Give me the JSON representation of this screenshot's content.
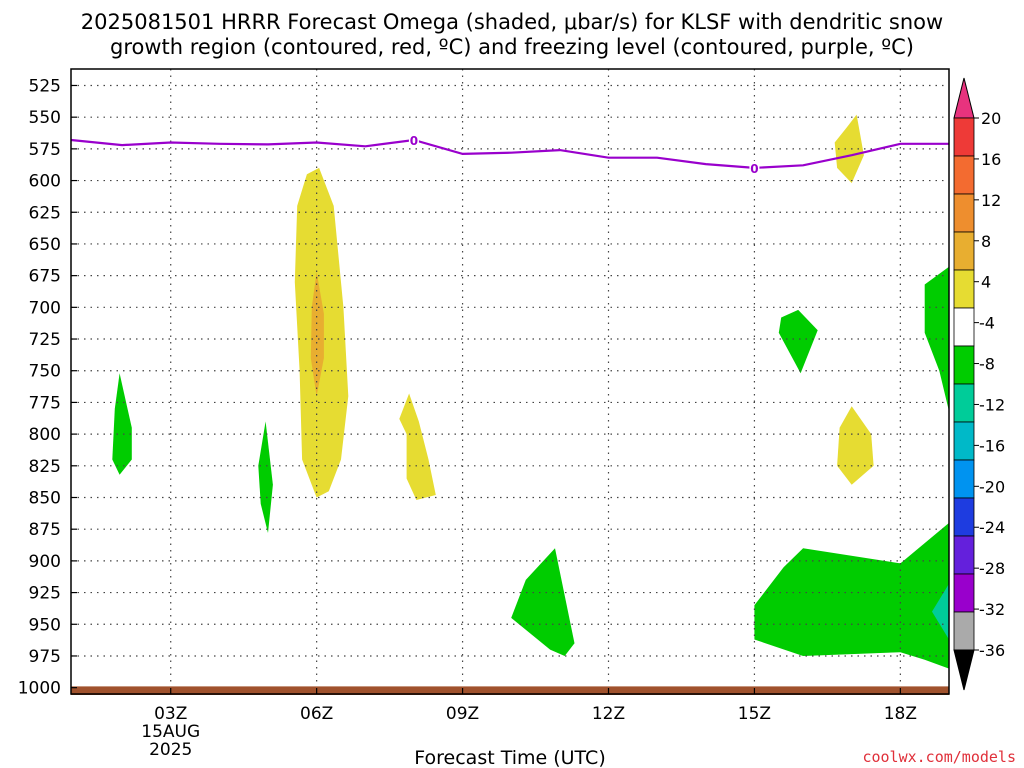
{
  "title_line1": "2025081501 HRRR Forecast Omega (shaded, μbar/s) for KLSF with dendritic snow",
  "title_line2": "growth region (contoured, red, ºC) and freezing level (contoured, purple, ºC)",
  "credit": "coolwx.com/models",
  "chart_data": {
    "type": "contour",
    "xlabel": "Forecast Time (UTC)",
    "ylabel": "",
    "x_range_hours": [
      0.95,
      19.0
    ],
    "y_range_hPa": [
      1005,
      512
    ],
    "y_ticks": [
      525,
      550,
      575,
      600,
      625,
      650,
      675,
      700,
      725,
      750,
      775,
      800,
      825,
      850,
      875,
      900,
      925,
      950,
      975,
      1000
    ],
    "y_tick_labels": [
      "525",
      "550",
      "575",
      "600",
      "625",
      "650",
      "675",
      "700",
      "725",
      "750",
      "775",
      "800",
      "825",
      "850",
      "875",
      "900",
      "925",
      "950",
      "975",
      "1000"
    ],
    "x_ticks": [
      {
        "hour": 3,
        "label": "03Z",
        "sub1": "15AUG",
        "sub2": "2025"
      },
      {
        "hour": 6,
        "label": "06Z",
        "sub1": "",
        "sub2": ""
      },
      {
        "hour": 9,
        "label": "09Z",
        "sub1": "",
        "sub2": ""
      },
      {
        "hour": 12,
        "label": "12Z",
        "sub1": "",
        "sub2": ""
      },
      {
        "hour": 15,
        "label": "15Z",
        "sub1": "",
        "sub2": ""
      },
      {
        "hour": 18,
        "label": "18Z",
        "sub1": "",
        "sub2": ""
      }
    ],
    "grid": true,
    "freezing_level": {
      "color": "#9900cc",
      "points": [
        [
          0.95,
          568
        ],
        [
          2,
          572
        ],
        [
          3,
          570
        ],
        [
          4,
          571
        ],
        [
          5,
          571.5
        ],
        [
          6,
          570
        ],
        [
          7,
          573
        ],
        [
          8,
          568
        ],
        [
          9,
          579
        ],
        [
          10,
          578
        ],
        [
          11,
          576
        ],
        [
          12,
          582
        ],
        [
          13,
          582
        ],
        [
          14,
          587
        ],
        [
          15,
          590
        ],
        [
          16,
          588
        ],
        [
          17,
          580
        ],
        [
          18,
          571
        ],
        [
          19,
          571
        ]
      ],
      "labels": [
        {
          "hour": 8,
          "p": 568,
          "text": "0"
        },
        {
          "hour": 15,
          "p": 590,
          "text": "0"
        }
      ]
    },
    "shaded_regions": [
      {
        "color": "#e6dc32",
        "points": [
          [
            6.05,
            590
          ],
          [
            6.35,
            620
          ],
          [
            6.55,
            700
          ],
          [
            6.65,
            770
          ],
          [
            6.5,
            820
          ],
          [
            6.25,
            845
          ],
          [
            6.0,
            850
          ],
          [
            5.7,
            820
          ],
          [
            5.65,
            750
          ],
          [
            5.55,
            680
          ],
          [
            5.6,
            620
          ],
          [
            5.8,
            595
          ]
        ]
      },
      {
        "color": "#e8ae30",
        "points": [
          [
            6.0,
            672
          ],
          [
            6.15,
            705
          ],
          [
            6.15,
            740
          ],
          [
            6.0,
            770
          ],
          [
            5.88,
            740
          ],
          [
            5.9,
            700
          ]
        ]
      },
      {
        "color": "#e6dc32",
        "points": [
          [
            7.9,
            768
          ],
          [
            8.1,
            790
          ],
          [
            8.3,
            820
          ],
          [
            8.45,
            848
          ],
          [
            8.05,
            852
          ],
          [
            7.85,
            835
          ],
          [
            7.85,
            800
          ],
          [
            7.7,
            788
          ]
        ]
      },
      {
        "color": "#e6dc32",
        "points": [
          [
            17.1,
            548
          ],
          [
            17.25,
            580
          ],
          [
            17.0,
            602
          ],
          [
            16.7,
            590
          ],
          [
            16.65,
            570
          ],
          [
            16.9,
            558
          ]
        ]
      },
      {
        "color": "#e6dc32",
        "points": [
          [
            17.0,
            778
          ],
          [
            17.4,
            800
          ],
          [
            17.45,
            825
          ],
          [
            17.0,
            840
          ],
          [
            16.7,
            825
          ],
          [
            16.75,
            795
          ]
        ]
      },
      {
        "color": "#00cc00",
        "points": [
          [
            1.95,
            752
          ],
          [
            2.2,
            795
          ],
          [
            2.2,
            820
          ],
          [
            1.95,
            832
          ],
          [
            1.8,
            820
          ],
          [
            1.85,
            780
          ]
        ]
      },
      {
        "color": "#00cc00",
        "points": [
          [
            4.95,
            790
          ],
          [
            5.1,
            840
          ],
          [
            5.0,
            878
          ],
          [
            4.85,
            855
          ],
          [
            4.8,
            825
          ]
        ]
      },
      {
        "color": "#00cc00",
        "points": [
          [
            10.9,
            890
          ],
          [
            11.3,
            965
          ],
          [
            11.1,
            975
          ],
          [
            10.8,
            970
          ],
          [
            10.0,
            945
          ],
          [
            10.3,
            915
          ]
        ]
      },
      {
        "color": "#00cc00",
        "points": [
          [
            15.9,
            702
          ],
          [
            16.3,
            718
          ],
          [
            15.95,
            752
          ],
          [
            15.5,
            720
          ],
          [
            15.55,
            708
          ]
        ]
      },
      {
        "color": "#00cc00",
        "points": [
          [
            15.0,
            935
          ],
          [
            15.6,
            905
          ],
          [
            16.0,
            890
          ],
          [
            18.0,
            902
          ],
          [
            19.0,
            870
          ],
          [
            19.0,
            985
          ],
          [
            18.5,
            978
          ],
          [
            18.0,
            972
          ],
          [
            16.0,
            975
          ],
          [
            15.0,
            962
          ],
          [
            15.0,
            945
          ]
        ]
      },
      {
        "color": "#00cc00",
        "points": [
          [
            19.0,
            668
          ],
          [
            18.5,
            682
          ],
          [
            18.5,
            720
          ],
          [
            18.8,
            750
          ],
          [
            19.0,
            782
          ]
        ]
      },
      {
        "color": "#00cc99",
        "points": [
          [
            19.0,
            918
          ],
          [
            18.65,
            940
          ],
          [
            19.0,
            962
          ]
        ]
      }
    ],
    "surface_band": {
      "color": "#a0522d",
      "p_top": 999,
      "p_bottom": 1005
    },
    "colorbar": {
      "ticks": [
        "20",
        "16",
        "12",
        "8",
        "4",
        "-4",
        "-8",
        "-12",
        "-16",
        "-20",
        "-24",
        "-28",
        "-32",
        "-36"
      ],
      "colors": [
        "#e8337e",
        "#ee3a37",
        "#f36b30",
        "#ee8e2e",
        "#e8ae30",
        "#e6dc32",
        "#ffffff",
        "#00cc00",
        "#00cc99",
        "#00b9c8",
        "#0093f0",
        "#1e3ce0",
        "#6420dc",
        "#9900cc",
        "#aaaaaa",
        "#000000"
      ]
    }
  }
}
